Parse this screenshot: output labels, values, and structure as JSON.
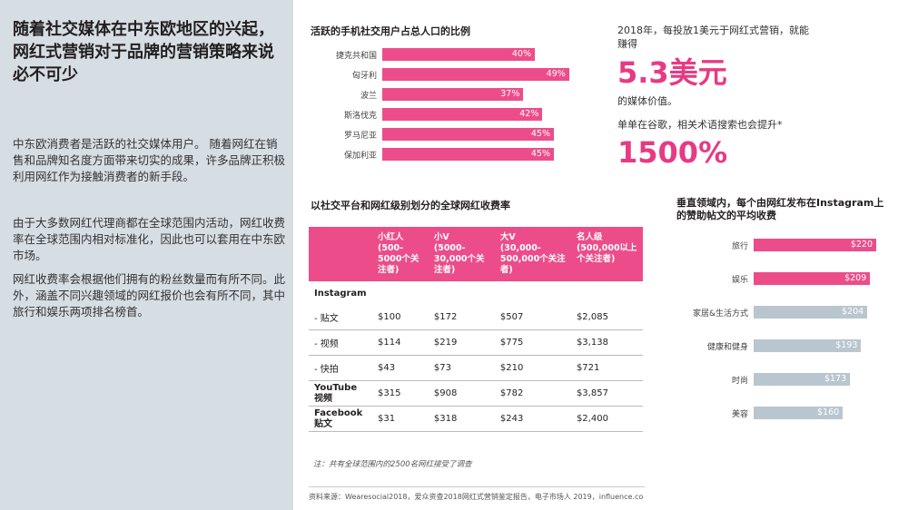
{
  "sidebar": {
    "title": "随着社交媒体在中东欧地区的兴起，网红式营销对于品牌的营销策略来说必不可少",
    "para1": "中东欧消费者是活跃的社交媒体用户。 随着网红在销售和品牌知名度方面带来切实的成果，许多品牌正积极利用网红作为接触消费者的新手段。",
    "para2": "由于大多数网红代理商都在全球范围内活动，网红收费率在全球范围内相对标准化，因此也可以套用在中东欧市场。",
    "para3": "网红收费率会根据他们拥有的粉丝数量而有所不同。此外，涵盖不同兴趣领域的网红报价也会有所不同，其中旅行和娱乐两项排名榜首。"
  },
  "stats": {
    "line1": "2018年，每投放1美元于网红式营销，就能赚得",
    "big1": "5.3美元",
    "line2": "的媒体价值。",
    "line3": "单单在谷歌，相关术语搜索也会提升*",
    "big2": "1500%"
  },
  "colors": {
    "pink": "#ec4d8a",
    "gray": "#b9c6cf",
    "sidebar": "#d6dde3"
  },
  "chart_data": [
    {
      "type": "bar",
      "title": "活跃的手机社交用户占总人口的比例",
      "categories": [
        "捷克共和国",
        "匈牙利",
        "波兰",
        "斯洛伐克",
        "罗马尼亚",
        "保加利亚"
      ],
      "values": [
        40,
        49,
        37,
        42,
        45,
        45
      ],
      "value_labels": [
        "40%",
        "49%",
        "37%",
        "42%",
        "45%",
        "45%"
      ],
      "orientation": "horizontal",
      "xlim": [
        0,
        50
      ]
    },
    {
      "type": "bar",
      "title": "垂直领域内，每个由网红发布在Instagram上的赞助帖文的平均收费",
      "categories": [
        "旅行",
        "娱乐",
        "家居&生活方式",
        "健康和健身",
        "时尚",
        "美容"
      ],
      "values": [
        220,
        209,
        204,
        193,
        173,
        160
      ],
      "value_labels": [
        "$220",
        "$209",
        "$204",
        "$193",
        "$173",
        "$160"
      ],
      "highlight": [
        true,
        true,
        false,
        false,
        false,
        false
      ],
      "orientation": "horizontal",
      "xlim": [
        0,
        220
      ]
    },
    {
      "type": "table",
      "title": "以社交平台和网红级别划分的全球网红收费率",
      "columns": [
        "",
        "小红人\n(500-5000个关注者)",
        "小V\n(5000-30,000个关注者)",
        "大V\n(30,000-500,000个关注者)",
        "名人级\n(500,000以上个关注者)"
      ],
      "rows": [
        {
          "label": "Instagram",
          "group": true,
          "cells": [
            "",
            "",
            "",
            ""
          ]
        },
        {
          "label": "- 贴文",
          "cells": [
            "$100",
            "$172",
            "$507",
            "$2,085"
          ]
        },
        {
          "label": "- 视频",
          "cells": [
            "$114",
            "$219",
            "$775",
            "$3,138"
          ]
        },
        {
          "label": "- 快拍",
          "cells": [
            "$43",
            "$73",
            "$210",
            "$721"
          ]
        },
        {
          "label": "YouTube\n视频",
          "bold": true,
          "cells": [
            "$315",
            "$908",
            "$782",
            "$3,857"
          ]
        },
        {
          "label": "Facebook\n贴文",
          "bold": true,
          "cells": [
            "$31",
            "$318",
            "$243",
            "$2,400"
          ]
        }
      ],
      "note": "注：共有全球范围内的2500名网红接受了调查"
    }
  ],
  "source": "资料来源：Wearesocial2018，爱众资查2018网红式营销鉴定报告，电子市场人 2019，influence.co"
}
